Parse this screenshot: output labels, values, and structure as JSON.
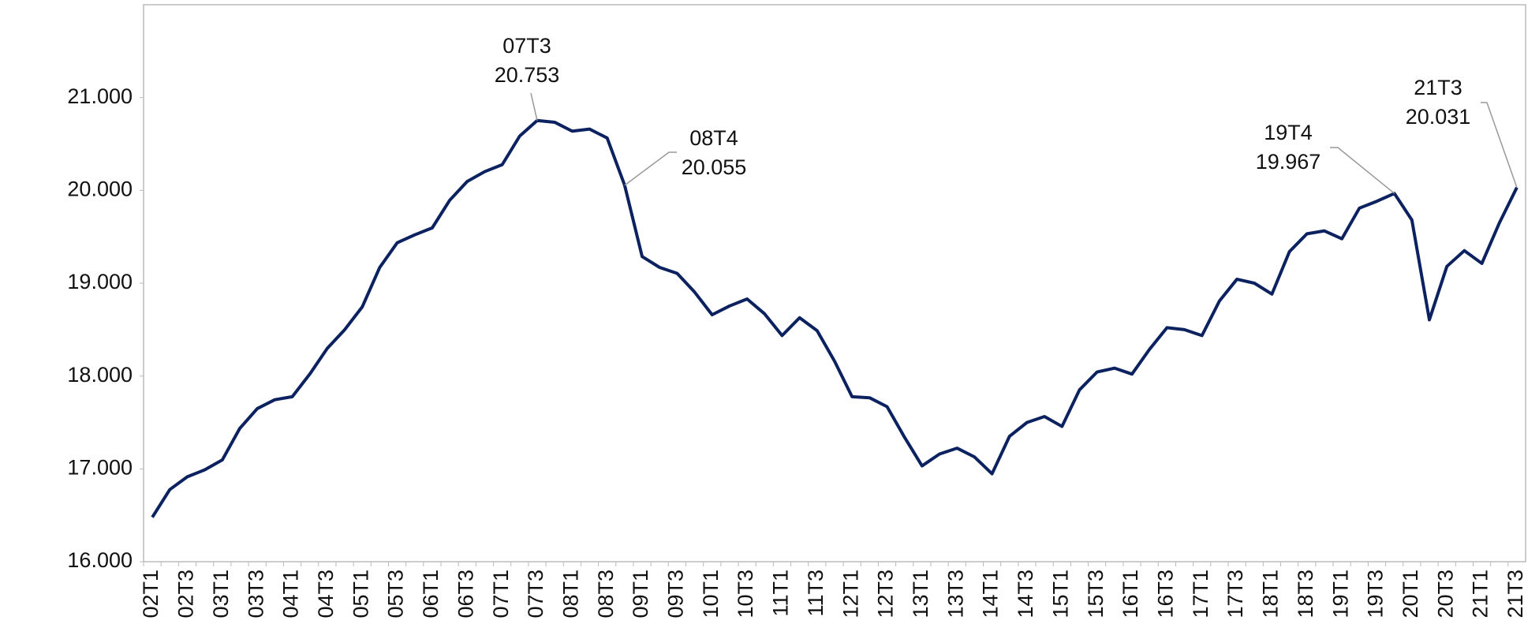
{
  "chart_data": {
    "type": "line",
    "categories": [
      "02T1",
      null,
      "02T3",
      null,
      "03T1",
      null,
      "03T3",
      null,
      "04T1",
      null,
      "04T3",
      null,
      "05T1",
      null,
      "05T3",
      null,
      "06T1",
      null,
      "06T3",
      null,
      "07T1",
      null,
      "07T3",
      null,
      "08T1",
      null,
      "08T3",
      null,
      "09T1",
      null,
      "09T3",
      null,
      "10T1",
      null,
      "10T3",
      null,
      "11T1",
      null,
      "11T3",
      null,
      "12T1",
      null,
      "12T3",
      null,
      "13T1",
      null,
      "13T3",
      null,
      "14T1",
      null,
      "14T3",
      null,
      "15T1",
      null,
      "15T3",
      null,
      "16T1",
      null,
      "16T3",
      null,
      "17T1",
      null,
      "17T3",
      null,
      "18T1",
      null,
      "18T3",
      null,
      "19T1",
      null,
      "19T3",
      null,
      "20T1",
      null,
      "20T3",
      null,
      "21T1",
      null,
      "21T3"
    ],
    "series": [
      {
        "color": "#0c2260",
        "values": [
          16479,
          16777,
          16915,
          16990,
          17096,
          17436,
          17649,
          17745,
          17777,
          18021,
          18298,
          18500,
          18745,
          19170,
          19436,
          19521,
          19596,
          19894,
          20096,
          20202,
          20277,
          20585,
          20753,
          20734,
          20638,
          20660,
          20564,
          20055,
          19287,
          19170,
          19106,
          18904,
          18660,
          18755,
          18830,
          18670,
          18436,
          18628,
          18489,
          18160,
          17777,
          17766,
          17670,
          17340,
          17032,
          17160,
          17223,
          17128,
          16947,
          17351,
          17500,
          17564,
          17457,
          17851,
          18043,
          18085,
          18021,
          18287,
          18521,
          18500,
          18436,
          18809,
          19043,
          19000,
          18883,
          19340,
          19532,
          19564,
          19479,
          19809,
          19883,
          19967,
          19681,
          18606,
          19181,
          19351,
          19213,
          19649,
          20031
        ],
        "value_labels": [
          null,
          null,
          null,
          null,
          null,
          null,
          null,
          null,
          null,
          null,
          null,
          null,
          null,
          null,
          null,
          null,
          null,
          null,
          null,
          null,
          null,
          null,
          "20.753",
          null,
          null,
          null,
          null,
          "20.055",
          null,
          null,
          null,
          null,
          null,
          null,
          null,
          null,
          null,
          null,
          null,
          null,
          null,
          null,
          null,
          null,
          null,
          null,
          null,
          null,
          null,
          null,
          null,
          null,
          null,
          null,
          null,
          null,
          null,
          null,
          null,
          null,
          null,
          null,
          null,
          null,
          null,
          null,
          null,
          null,
          null,
          null,
          null,
          "19.967",
          null,
          null,
          null,
          null,
          null,
          null,
          "20.031"
        ],
        "annotations": [
          null,
          null,
          null,
          null,
          null,
          null,
          null,
          null,
          null,
          null,
          null,
          null,
          null,
          null,
          null,
          null,
          null,
          null,
          null,
          null,
          null,
          null,
          "07T3",
          null,
          null,
          null,
          null,
          "08T4",
          null,
          null,
          null,
          null,
          null,
          null,
          null,
          null,
          null,
          null,
          null,
          null,
          null,
          null,
          null,
          null,
          null,
          null,
          null,
          null,
          null,
          null,
          null,
          null,
          null,
          null,
          null,
          null,
          null,
          null,
          null,
          null,
          null,
          null,
          null,
          null,
          null,
          null,
          null,
          null,
          null,
          null,
          null,
          "19T4",
          null,
          null,
          null,
          null,
          null,
          null,
          "21T3"
        ]
      }
    ],
    "ylim": [
      16000,
      22000
    ],
    "yticks": [
      {
        "value": 16000,
        "label": "16.000"
      },
      {
        "value": 17000,
        "label": "17.000"
      },
      {
        "value": 18000,
        "label": "18.000"
      },
      {
        "value": 19000,
        "label": "19.000"
      },
      {
        "value": 20000,
        "label": "20.000"
      },
      {
        "value": 21000,
        "label": "21.000"
      }
    ],
    "grid": false
  }
}
